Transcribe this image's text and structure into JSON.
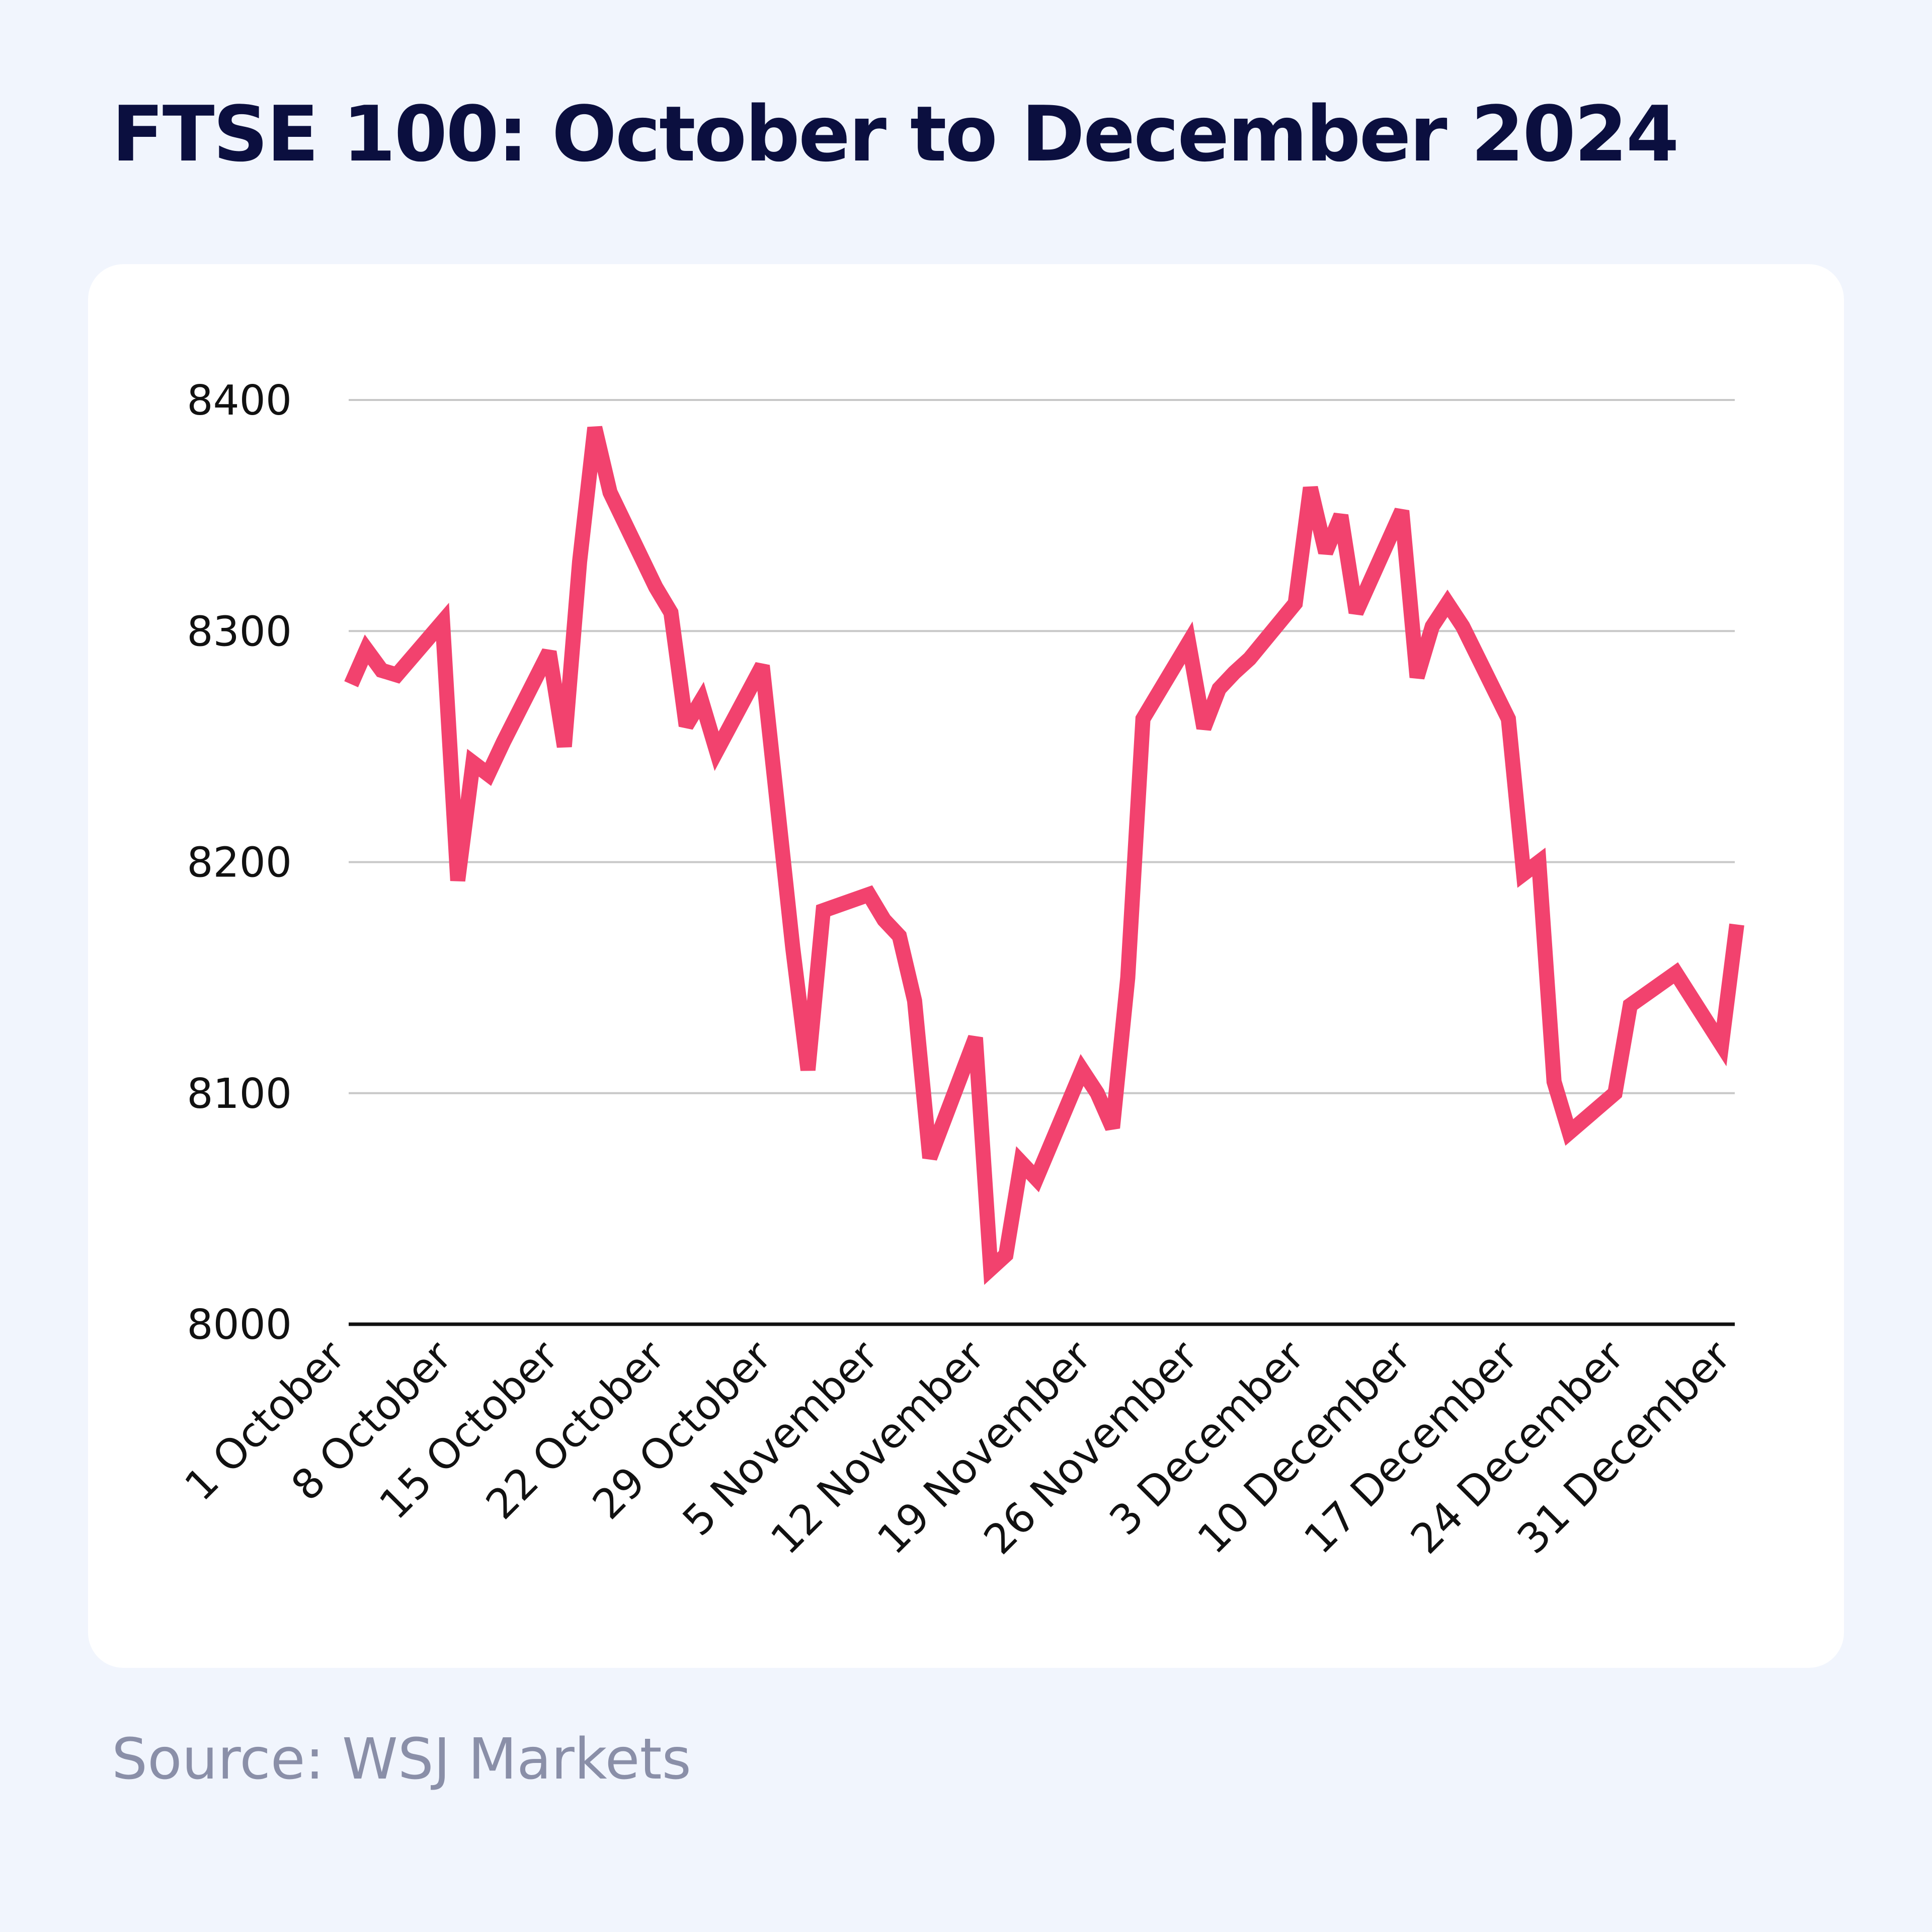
{
  "title": "FTSE 100: October to December 2024",
  "source": "Source: WSJ Markets",
  "colors": {
    "line": "#f2426e",
    "background": "#f1f5fd",
    "card": "#ffffff",
    "grid": "#c8c8c8",
    "title": "#0b0f3f",
    "source": "#8a8fa8"
  },
  "chart_data": {
    "type": "line",
    "title": "FTSE 100: October to December 2024",
    "xlabel": "",
    "ylabel": "",
    "ylim": [
      8000,
      8400
    ],
    "grid": true,
    "yticks": [
      "8000",
      "8100",
      "8200",
      "8300",
      "8400"
    ],
    "xticks": [
      {
        "label": "1 October",
        "date": "2024-10-01"
      },
      {
        "label": "8 October",
        "date": "2024-10-08"
      },
      {
        "label": "15 October",
        "date": "2024-10-15"
      },
      {
        "label": "22 October",
        "date": "2024-10-22"
      },
      {
        "label": "29 October",
        "date": "2024-10-29"
      },
      {
        "label": "5 November",
        "date": "2024-11-05"
      },
      {
        "label": "12 November",
        "date": "2024-11-12"
      },
      {
        "label": "19 November",
        "date": "2024-11-19"
      },
      {
        "label": "26 November",
        "date": "2024-11-26"
      },
      {
        "label": "3 December",
        "date": "2024-12-03"
      },
      {
        "label": "10 December",
        "date": "2024-12-10"
      },
      {
        "label": "17 December",
        "date": "2024-12-17"
      },
      {
        "label": "24 December",
        "date": "2024-12-24"
      },
      {
        "label": "31 December",
        "date": "2024-12-31"
      }
    ],
    "series": [
      {
        "x": [
          "2024-10-01",
          "2024-10-02",
          "2024-10-03",
          "2024-10-04",
          "2024-10-07",
          "2024-10-08",
          "2024-10-09",
          "2024-10-10",
          "2024-10-11",
          "2024-10-14",
          "2024-10-15",
          "2024-10-16",
          "2024-10-17",
          "2024-10-18",
          "2024-10-21",
          "2024-10-22",
          "2024-10-23",
          "2024-10-24",
          "2024-10-25",
          "2024-10-28",
          "2024-10-29",
          "2024-10-30",
          "2024-10-31",
          "2024-11-01",
          "2024-11-04",
          "2024-11-05",
          "2024-11-06",
          "2024-11-07",
          "2024-11-08",
          "2024-11-11",
          "2024-11-12",
          "2024-11-13",
          "2024-11-14",
          "2024-11-15",
          "2024-11-18",
          "2024-11-19",
          "2024-11-20",
          "2024-11-21",
          "2024-11-22",
          "2024-11-25",
          "2024-11-26",
          "2024-11-27",
          "2024-11-28",
          "2024-11-29",
          "2024-12-02",
          "2024-12-03",
          "2024-12-04",
          "2024-12-05",
          "2024-12-06",
          "2024-12-09",
          "2024-12-10",
          "2024-12-11",
          "2024-12-12",
          "2024-12-13",
          "2024-12-16",
          "2024-12-17",
          "2024-12-18",
          "2024-12-19",
          "2024-12-20",
          "2024-12-23",
          "2024-12-24",
          "2024-12-27",
          "2024-12-30",
          "2024-12-31"
        ],
        "values": [
          8277,
          8292,
          8283,
          8281,
          8304,
          8192,
          8243,
          8238,
          8252,
          8291,
          8250,
          8330,
          8388,
          8360,
          8319,
          8308,
          8259,
          8270,
          8248,
          8285,
          8224,
          8163,
          8110,
          8179,
          8186,
          8175,
          8168,
          8140,
          8072,
          8124,
          8024,
          8030,
          8070,
          8063,
          8110,
          8100,
          8085,
          8150,
          8262,
          8295,
          8258,
          8275,
          8282,
          8288,
          8312,
          8362,
          8334,
          8350,
          8308,
          8352,
          8280,
          8302,
          8312,
          8302,
          8262,
          8195,
          8200,
          8105,
          8083,
          8100,
          8138,
          8152,
          8121,
          8173
        ]
      }
    ]
  }
}
